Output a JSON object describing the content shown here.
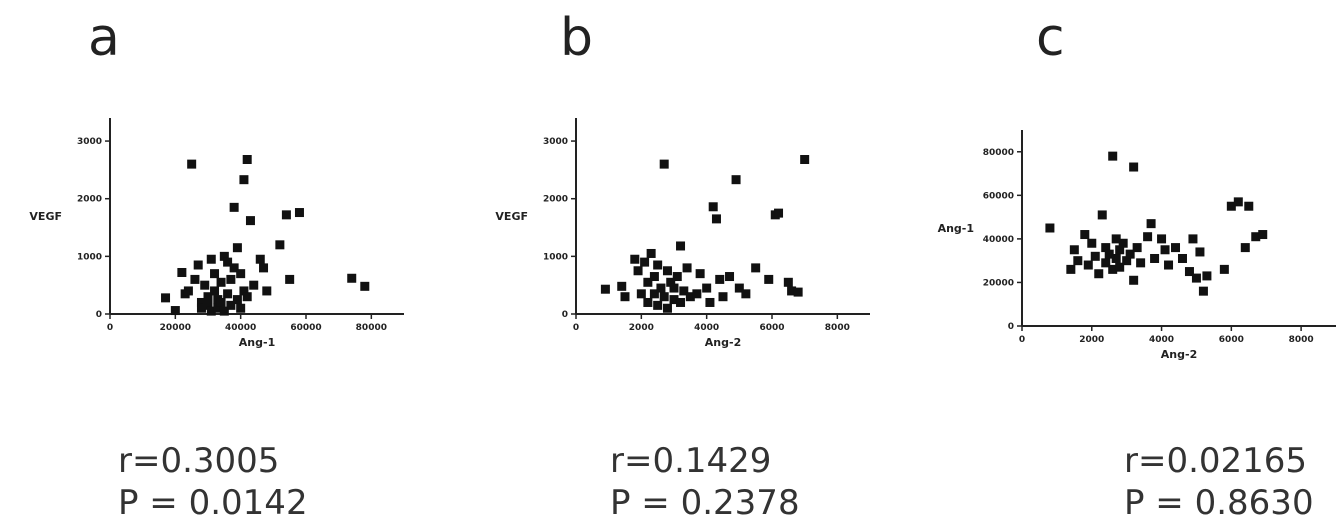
{
  "panels": [
    {
      "letter": "a",
      "r_text": "r=0.3005",
      "p_text": "P = 0.0142"
    },
    {
      "letter": "b",
      "r_text": "r=0.1429",
      "p_text": "P = 0.2378"
    },
    {
      "letter": "c",
      "r_text": "r=0.02165",
      "p_text": "P = 0.8630"
    }
  ],
  "chart_data": [
    {
      "type": "scatter",
      "xlabel": "Ang-1",
      "ylabel": "VEGF",
      "xlim": [
        0,
        90000
      ],
      "ylim": [
        0,
        3400
      ],
      "xticks": [
        "0",
        "20000",
        "40000",
        "60000",
        "80000"
      ],
      "xtick_values": [
        0,
        20000,
        40000,
        60000,
        80000
      ],
      "yticks": [
        "0",
        "1000",
        "2000",
        "3000"
      ],
      "ytick_values": [
        0,
        1000,
        2000,
        3000
      ],
      "points": [
        [
          17000,
          280
        ],
        [
          20000,
          60
        ],
        [
          22000,
          720
        ],
        [
          23000,
          350
        ],
        [
          24000,
          400
        ],
        [
          25000,
          2600
        ],
        [
          26000,
          600
        ],
        [
          27000,
          850
        ],
        [
          28000,
          200
        ],
        [
          28000,
          100
        ],
        [
          29000,
          500
        ],
        [
          30000,
          300
        ],
        [
          30000,
          150
        ],
        [
          31000,
          950
        ],
        [
          31000,
          50
        ],
        [
          32000,
          700
        ],
        [
          32000,
          400
        ],
        [
          33000,
          250
        ],
        [
          33000,
          100
        ],
        [
          34000,
          550
        ],
        [
          34000,
          200
        ],
        [
          35000,
          1000
        ],
        [
          35000,
          50
        ],
        [
          36000,
          900
        ],
        [
          36000,
          350
        ],
        [
          37000,
          600
        ],
        [
          37000,
          150
        ],
        [
          38000,
          1850
        ],
        [
          38000,
          800
        ],
        [
          39000,
          1150
        ],
        [
          39000,
          250
        ],
        [
          40000,
          700
        ],
        [
          40000,
          100
        ],
        [
          41000,
          2330
        ],
        [
          41000,
          400
        ],
        [
          42000,
          2680
        ],
        [
          42000,
          300
        ],
        [
          43000,
          1620
        ],
        [
          44000,
          500
        ],
        [
          46000,
          950
        ],
        [
          47000,
          800
        ],
        [
          48000,
          400
        ],
        [
          52000,
          1200
        ],
        [
          54000,
          1720
        ],
        [
          55000,
          600
        ],
        [
          58000,
          1760
        ],
        [
          74000,
          620
        ],
        [
          78000,
          480
        ]
      ]
    },
    {
      "type": "scatter",
      "xlabel": "Ang-2",
      "ylabel": "VEGF",
      "xlim": [
        0,
        9000
      ],
      "ylim": [
        0,
        3400
      ],
      "xticks": [
        "0",
        "2000",
        "4000",
        "6000",
        "8000"
      ],
      "xtick_values": [
        0,
        2000,
        4000,
        6000,
        8000
      ],
      "yticks": [
        "0",
        "1000",
        "2000",
        "3000"
      ],
      "ytick_values": [
        0,
        1000,
        2000,
        3000
      ],
      "points": [
        [
          900,
          430
        ],
        [
          1400,
          480
        ],
        [
          1500,
          300
        ],
        [
          1800,
          950
        ],
        [
          1900,
          750
        ],
        [
          2000,
          350
        ],
        [
          2100,
          900
        ],
        [
          2200,
          200
        ],
        [
          2200,
          550
        ],
        [
          2300,
          1050
        ],
        [
          2400,
          650
        ],
        [
          2400,
          350
        ],
        [
          2500,
          850
        ],
        [
          2500,
          150
        ],
        [
          2600,
          450
        ],
        [
          2700,
          2600
        ],
        [
          2700,
          300
        ],
        [
          2800,
          750
        ],
        [
          2800,
          100
        ],
        [
          2900,
          550
        ],
        [
          3000,
          250
        ],
        [
          3000,
          450
        ],
        [
          3100,
          650
        ],
        [
          3200,
          1180
        ],
        [
          3200,
          200
        ],
        [
          3300,
          400
        ],
        [
          3400,
          800
        ],
        [
          3500,
          300
        ],
        [
          3700,
          350
        ],
        [
          3800,
          700
        ],
        [
          4000,
          450
        ],
        [
          4100,
          200
        ],
        [
          4200,
          1860
        ],
        [
          4300,
          1650
        ],
        [
          4400,
          600
        ],
        [
          4500,
          300
        ],
        [
          4700,
          650
        ],
        [
          4900,
          2330
        ],
        [
          5000,
          450
        ],
        [
          5200,
          350
        ],
        [
          5500,
          800
        ],
        [
          5900,
          600
        ],
        [
          6100,
          1720
        ],
        [
          6200,
          1750
        ],
        [
          6500,
          550
        ],
        [
          6600,
          400
        ],
        [
          7000,
          2680
        ],
        [
          6800,
          380
        ]
      ]
    },
    {
      "type": "scatter",
      "xlabel": "Ang-2",
      "ylabel": "Ang-1",
      "xlim": [
        0,
        9000
      ],
      "ylim": [
        0,
        90000
      ],
      "xticks": [
        "0",
        "2000",
        "4000",
        "6000",
        "8000"
      ],
      "xtick_values": [
        0,
        2000,
        4000,
        6000,
        8000
      ],
      "yticks": [
        "0",
        "20000",
        "40000",
        "60000",
        "80000"
      ],
      "ytick_values": [
        0,
        20000,
        40000,
        60000,
        80000
      ],
      "points": [
        [
          800,
          45000
        ],
        [
          1400,
          26000
        ],
        [
          1500,
          35000
        ],
        [
          1600,
          30000
        ],
        [
          1800,
          42000
        ],
        [
          1900,
          28000
        ],
        [
          2000,
          38000
        ],
        [
          2100,
          32000
        ],
        [
          2200,
          24000
        ],
        [
          2300,
          51000
        ],
        [
          2400,
          36000
        ],
        [
          2400,
          29000
        ],
        [
          2500,
          33000
        ],
        [
          2600,
          78000
        ],
        [
          2600,
          26000
        ],
        [
          2700,
          40000
        ],
        [
          2700,
          31000
        ],
        [
          2800,
          35000
        ],
        [
          2800,
          27000
        ],
        [
          2900,
          38000
        ],
        [
          3000,
          30000
        ],
        [
          3100,
          33000
        ],
        [
          3200,
          73000
        ],
        [
          3200,
          21000
        ],
        [
          3300,
          36000
        ],
        [
          3400,
          29000
        ],
        [
          3600,
          41000
        ],
        [
          3700,
          47000
        ],
        [
          3800,
          31000
        ],
        [
          4000,
          40000
        ],
        [
          4100,
          35000
        ],
        [
          4200,
          28000
        ],
        [
          4400,
          36000
        ],
        [
          4600,
          31000
        ],
        [
          4800,
          25000
        ],
        [
          4900,
          40000
        ],
        [
          5000,
          22000
        ],
        [
          5100,
          34000
        ],
        [
          5200,
          16000
        ],
        [
          5300,
          23000
        ],
        [
          5800,
          26000
        ],
        [
          6000,
          55000
        ],
        [
          6200,
          57000
        ],
        [
          6400,
          36000
        ],
        [
          6500,
          55000
        ],
        [
          6700,
          41000
        ],
        [
          6900,
          42000
        ]
      ]
    }
  ]
}
